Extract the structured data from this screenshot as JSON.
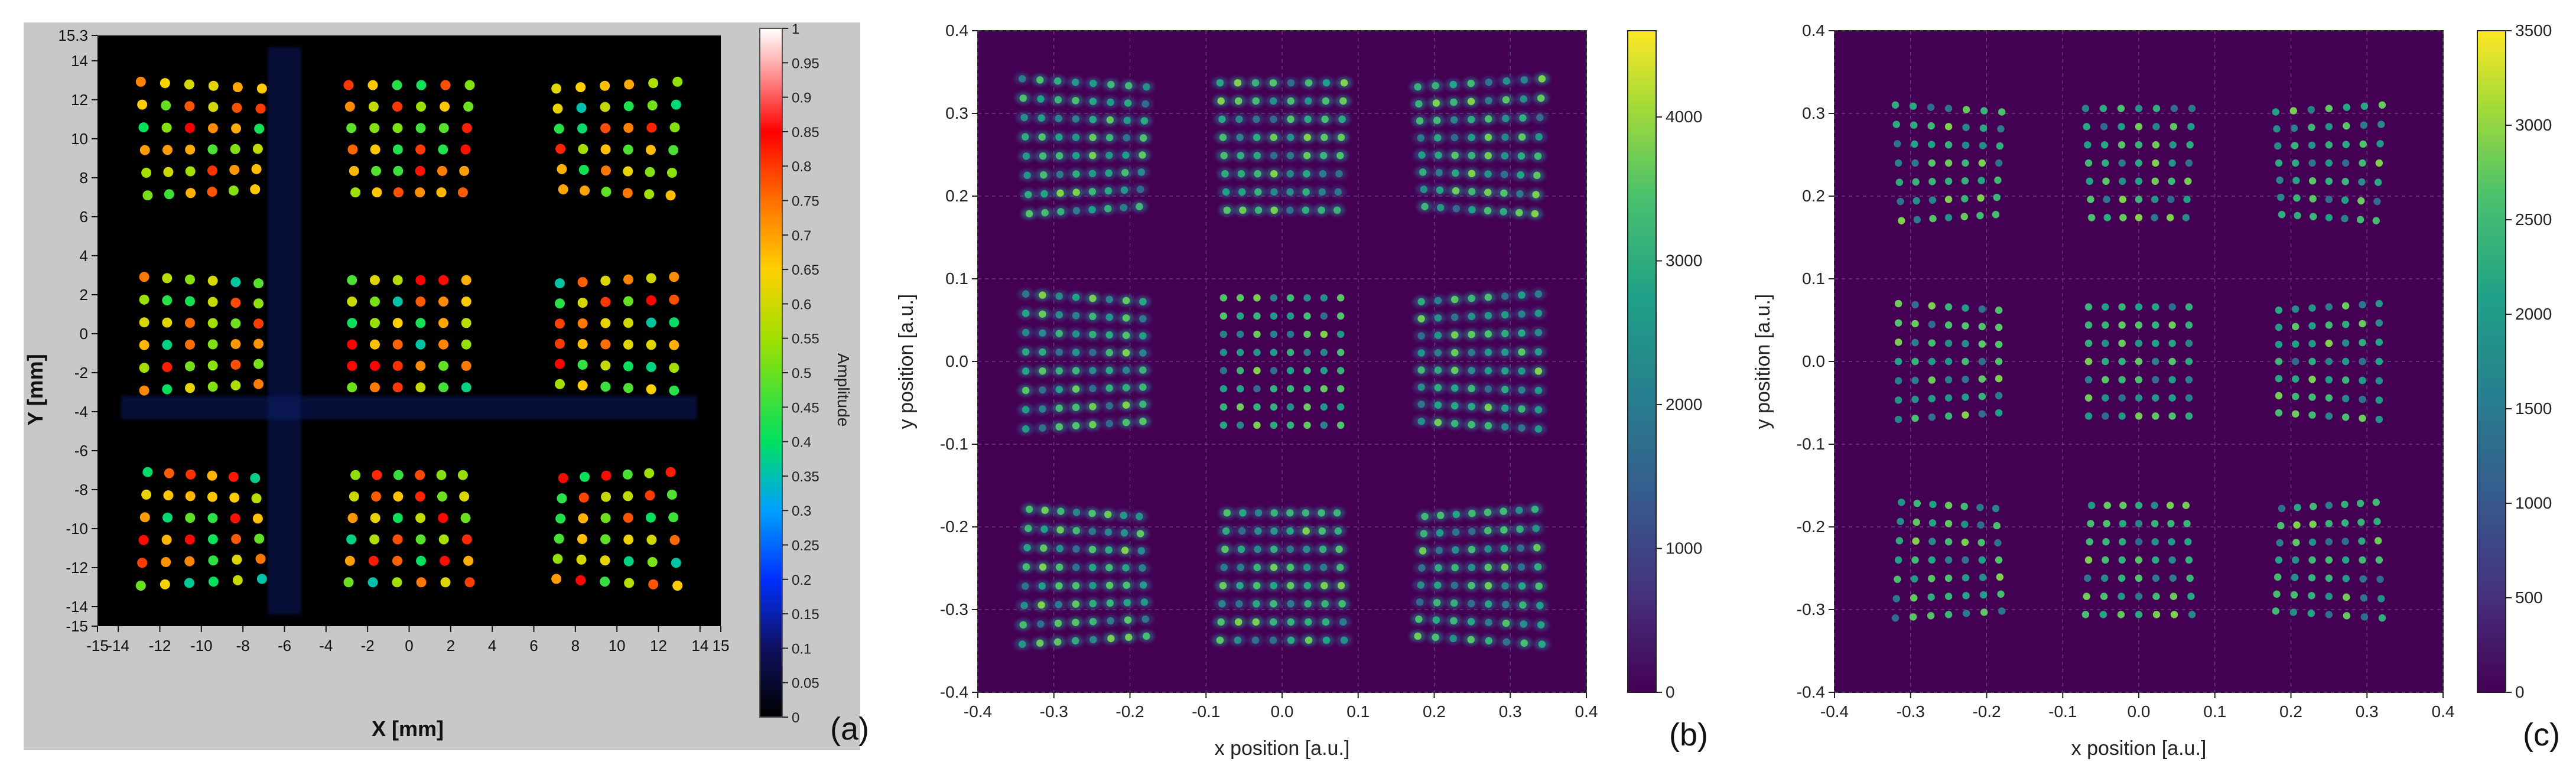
{
  "panels": [
    {
      "id": "a",
      "panel_label": "(a)",
      "chart_data": {
        "type": "heatmap",
        "title": "",
        "xlabel": "X  [mm]",
        "ylabel": "Y  [mm]",
        "xlim": [
          -15,
          15
        ],
        "ylim": [
          -15,
          15.3
        ],
        "xticks": [
          "-15",
          "-14",
          "-12",
          "-10",
          "-8",
          "-6",
          "-4",
          "-2",
          "0",
          "2",
          "4",
          "6",
          "8",
          "10",
          "12",
          "14",
          "15"
        ],
        "xtick_values": [
          -15,
          -14,
          -12,
          -10,
          -8,
          -6,
          -4,
          -2,
          0,
          2,
          4,
          6,
          8,
          10,
          12,
          14,
          15
        ],
        "yticks": [
          "15.3",
          "14",
          "12",
          "10",
          "8",
          "6",
          "4",
          "2",
          "0",
          "-2",
          "-4",
          "-6",
          "-8",
          "-10",
          "-12",
          "-14",
          "-15"
        ],
        "ytick_values": [
          15.3,
          14,
          12,
          10,
          8,
          6,
          4,
          2,
          0,
          -2,
          -4,
          -6,
          -8,
          -10,
          -12,
          -14,
          -15
        ],
        "colorbar": {
          "label": "Amplitude",
          "range": [
            0,
            1
          ],
          "ticks": [
            "1",
            "0.95",
            "0.9",
            "0.85",
            "0.8",
            "0.75",
            "0.7",
            "0.65",
            "0.6",
            "0.55",
            "0.5",
            "0.45",
            "0.4",
            "0.35",
            "0.3",
            "0.25",
            "0.2",
            "0.15",
            "0.1",
            "0.05",
            "0"
          ],
          "tick_values": [
            1,
            0.95,
            0.9,
            0.85,
            0.8,
            0.75,
            0.7,
            0.65,
            0.6,
            0.55,
            0.5,
            0.45,
            0.4,
            0.35,
            0.3,
            0.25,
            0.2,
            0.15,
            0.1,
            0.05,
            0
          ],
          "colormap": "jet-like (black-blue-green-yellow-red-white)"
        },
        "spot_grid": {
          "blocks_x": [
            -10,
            0,
            10
          ],
          "blocks_y": [
            10,
            0,
            -10
          ],
          "spots_per_block": 6,
          "spot_pitch": 1.1
        },
        "background": "#000000"
      }
    },
    {
      "id": "b",
      "panel_label": "(b)",
      "chart_data": {
        "type": "heatmap",
        "title": "",
        "xlabel": "x position [a.u.]",
        "ylabel": "y position [a.u.]",
        "xlim": [
          -0.4,
          0.4
        ],
        "ylim": [
          -0.4,
          0.4
        ],
        "xticks": [
          "-0.4",
          "-0.3",
          "-0.2",
          "-0.1",
          "0.0",
          "0.1",
          "0.2",
          "0.3",
          "0.4"
        ],
        "xtick_values": [
          -0.4,
          -0.3,
          -0.2,
          -0.1,
          0,
          0.1,
          0.2,
          0.3,
          0.4
        ],
        "yticks": [
          "0.4",
          "0.3",
          "0.2",
          "0.1",
          "0.0",
          "-0.1",
          "-0.2",
          "-0.3",
          "-0.4"
        ],
        "ytick_values": [
          0.4,
          0.3,
          0.2,
          0.1,
          0,
          -0.1,
          -0.2,
          -0.3,
          -0.4
        ],
        "grid": true,
        "colorbar": {
          "range": [
            0,
            4600
          ],
          "ticks": [
            "4000",
            "3000",
            "2000",
            "1000",
            "0"
          ],
          "tick_values": [
            4000,
            3000,
            2000,
            1000,
            0
          ],
          "colormap": "viridis"
        },
        "spot_grid": {
          "blocks_x": [
            -0.26,
            0.0,
            0.26
          ],
          "blocks_y": [
            0.26,
            0.0,
            -0.26
          ],
          "spots_per_block": 8,
          "spot_pitch": 0.022
        },
        "background": "#440154"
      }
    },
    {
      "id": "c",
      "panel_label": "(c)",
      "chart_data": {
        "type": "heatmap",
        "title": "",
        "xlabel": "x position [a.u.]",
        "ylabel": "y position [a.u.]",
        "xlim": [
          -0.4,
          0.4
        ],
        "ylim": [
          -0.4,
          0.4
        ],
        "xticks": [
          "-0.4",
          "-0.3",
          "-0.2",
          "-0.1",
          "0.0",
          "0.1",
          "0.2",
          "0.3",
          "0.4"
        ],
        "xtick_values": [
          -0.4,
          -0.3,
          -0.2,
          -0.1,
          0,
          0.1,
          0.2,
          0.3,
          0.4
        ],
        "yticks": [
          "0.4",
          "0.3",
          "0.2",
          "0.1",
          "0.0",
          "-0.1",
          "-0.2",
          "-0.3",
          "-0.4"
        ],
        "ytick_values": [
          0.4,
          0.3,
          0.2,
          0.1,
          0,
          -0.1,
          -0.2,
          -0.3,
          -0.4
        ],
        "grid": true,
        "colorbar": {
          "range": [
            0,
            3500
          ],
          "ticks": [
            "3500",
            "3000",
            "2500",
            "2000",
            "1500",
            "1000",
            "500",
            "0"
          ],
          "tick_values": [
            3500,
            3000,
            2500,
            2000,
            1500,
            1000,
            500,
            0
          ],
          "colormap": "viridis"
        },
        "spot_grid": {
          "blocks_x": [
            -0.25,
            0.0,
            0.25
          ],
          "blocks_y": [
            0.24,
            0.0,
            -0.24
          ],
          "spots_per_block": 7,
          "spot_pitch": 0.022
        },
        "background": "#440154"
      }
    }
  ]
}
